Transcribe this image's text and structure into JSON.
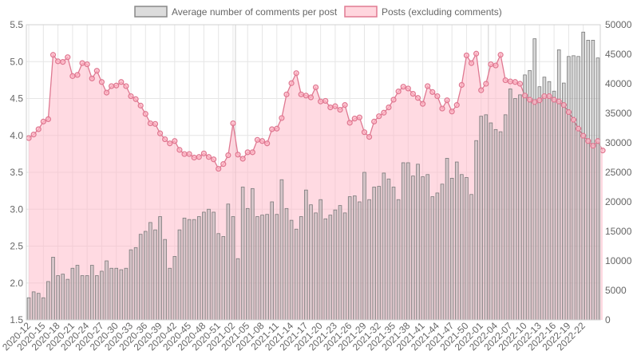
{
  "chart_data": {
    "type": "bar",
    "legend": {
      "placement": "top",
      "entries": [
        {
          "label": "Average number of comments per post",
          "fill": "#dcdcdc",
          "stroke": "#888888"
        },
        {
          "label": "Posts (excluding comments)",
          "fill": "#ffd6de",
          "stroke": "#e07a92"
        }
      ]
    },
    "grid": true,
    "y_left": {
      "min": 1.5,
      "max": 5.5,
      "ticks": [
        "1.5",
        "2.0",
        "2.5",
        "3.0",
        "3.5",
        "4.0",
        "4.5",
        "5.0",
        "5.5"
      ]
    },
    "y_right": {
      "min": 0,
      "max": 50000,
      "ticks": [
        "0",
        "5000",
        "10000",
        "15000",
        "20000",
        "25000",
        "30000",
        "35000",
        "40000",
        "45000",
        "50000"
      ]
    },
    "x_tick_labels": [
      "2020-12",
      "2020-15",
      "2020-18",
      "2020-21",
      "2020-24",
      "2020-27",
      "2020-30",
      "2020-33",
      "2020-36",
      "2020-39",
      "2020-42",
      "2020-45",
      "2020-48",
      "2020-51",
      "2021-02",
      "2021-05",
      "2021-08",
      "2021-11",
      "2021-14",
      "2021-17",
      "2021-20",
      "2021-23",
      "2021-26",
      "2021-29",
      "2021-32",
      "2021-35",
      "2021-38",
      "2021-41",
      "2021-44",
      "2021-47",
      "2021-50",
      "2022-01",
      "2022-04",
      "2022-07",
      "2022-10",
      "2022-13",
      "2022-16",
      "2022-19",
      "2022-22"
    ],
    "series": [
      {
        "name": "Average number of comments per post",
        "type": "bar",
        "axis": "left",
        "values": [
          1.8,
          1.88,
          1.86,
          1.8,
          2.02,
          2.35,
          2.1,
          2.12,
          2.05,
          2.2,
          2.24,
          2.1,
          2.1,
          2.24,
          2.1,
          2.16,
          2.3,
          2.2,
          2.2,
          2.18,
          2.2,
          2.45,
          2.48,
          2.66,
          2.7,
          2.82,
          2.72,
          2.9,
          2.59,
          2.2,
          2.36,
          2.72,
          2.88,
          2.86,
          2.86,
          2.9,
          2.96,
          3.0,
          2.96,
          2.67,
          2.63,
          3.07,
          2.9,
          2.33,
          3.3,
          3.01,
          3.28,
          2.9,
          2.92,
          2.93,
          3.1,
          2.93,
          3.4,
          3.01,
          2.85,
          2.73,
          2.9,
          3.26,
          3.06,
          2.95,
          3.13,
          2.87,
          2.92,
          2.99,
          3.05,
          2.95,
          3.17,
          3.18,
          3.1,
          3.5,
          3.13,
          3.3,
          3.31,
          3.49,
          3.41,
          3.3,
          3.13,
          3.63,
          3.63,
          3.45,
          3.61,
          3.44,
          3.47,
          3.17,
          3.22,
          3.34,
          3.69,
          3.42,
          3.64,
          3.47,
          3.43,
          3.2,
          3.93,
          4.26,
          4.28,
          4.17,
          4.08,
          4.05,
          4.28,
          4.63,
          4.5,
          4.55,
          4.82,
          4.88,
          5.31,
          4.66,
          4.79,
          4.73,
          4.6,
          5.16,
          4.71,
          5.07,
          5.08,
          5.07,
          5.4,
          5.29,
          5.29,
          5.05
        ]
      },
      {
        "name": "Posts (excluding comments)",
        "type": "area",
        "axis": "right",
        "values": [
          30800,
          31400,
          32300,
          33600,
          34000,
          44900,
          43800,
          43700,
          44500,
          41300,
          41500,
          43500,
          43300,
          40900,
          42200,
          40300,
          38500,
          39600,
          39700,
          40300,
          39600,
          37900,
          37400,
          36300,
          34900,
          33300,
          33200,
          31600,
          30600,
          29900,
          30300,
          28800,
          28100,
          28100,
          27500,
          27600,
          28200,
          27600,
          27200,
          25600,
          26400,
          27900,
          33300,
          28000,
          27300,
          28400,
          28400,
          30500,
          30300,
          29900,
          32300,
          32400,
          34200,
          38200,
          40100,
          41800,
          38200,
          38000,
          37700,
          39400,
          37000,
          37100,
          36000,
          36200,
          35600,
          36400,
          33400,
          34100,
          34300,
          31800,
          31000,
          33600,
          34500,
          35100,
          36000,
          37300,
          38700,
          39500,
          39200,
          38300,
          37600,
          36600,
          39600,
          38600,
          37900,
          35800,
          37200,
          35300,
          36400,
          39800,
          44800,
          43500,
          45100,
          38900,
          40000,
          43300,
          43100,
          44900,
          40600,
          40400,
          40300,
          40000,
          38000,
          37300,
          36900,
          37200,
          37900,
          37900,
          37300,
          37000,
          36400,
          35200,
          33900,
          32400,
          31200,
          30300,
          29500,
          30300,
          28700
        ]
      }
    ]
  }
}
